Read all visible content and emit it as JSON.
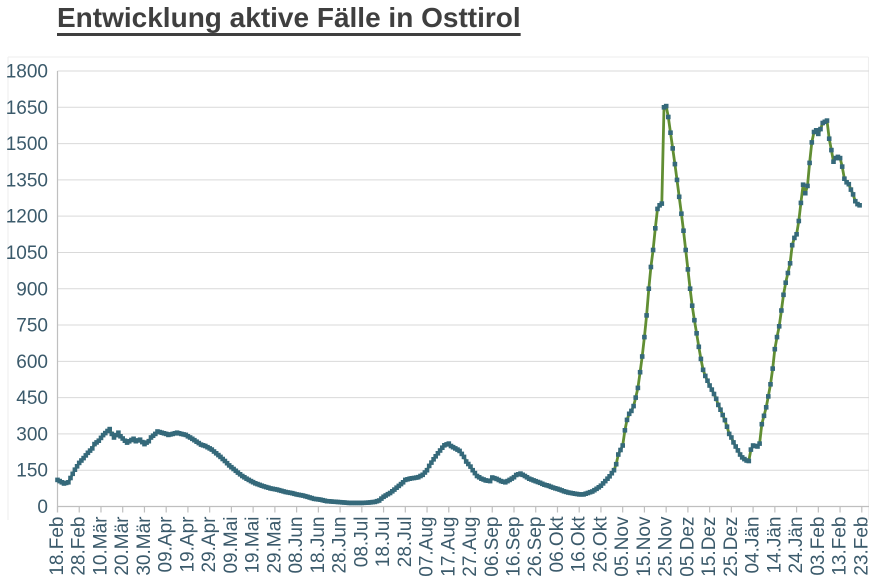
{
  "title": {
    "text": "Entwicklung aktive Fälle in Osttirol",
    "color": "#3f3f3f"
  },
  "colors": {
    "background": "#ffffff",
    "line": "#618e33",
    "marker": "#35697a",
    "gridline": "#d9d9d9",
    "axis_line": "#bfbfbf",
    "tick_label": "#3b5a6b",
    "chart_border": "#ededed"
  },
  "chart_data": {
    "type": "line",
    "title": "Entwicklung aktive Fälle in Osttirol",
    "xlabel": "",
    "ylabel": "",
    "ylim": [
      0,
      1800
    ],
    "ytick_step": 150,
    "ytick_labels": [
      "0",
      "150",
      "300",
      "450",
      "600",
      "750",
      "900",
      "1050",
      "1200",
      "1350",
      "1500",
      "1650",
      "1800"
    ],
    "x_tick_labels": [
      "18.Feb",
      "28.Feb",
      "10.Mär",
      "20.Mär",
      "30.Mär",
      "09.Apr",
      "19.Apr",
      "29.Apr",
      "09.Mai",
      "19.Mai",
      "29.Mai",
      "08.Jun",
      "18.Jun",
      "28.Jun",
      "08.Jul",
      "18.Jul",
      "28.Jul",
      "07.Aug",
      "17.Aug",
      "27.Aug",
      "06.Sep",
      "16.Sep",
      "26.Sep",
      "06.Okt",
      "16.Okt",
      "26.Okt",
      "05.Nov",
      "15.Nov",
      "25.Nov",
      "05.Dez",
      "15.Dez",
      "25.Dez",
      "04.Jän",
      "14.Jän",
      "24.Jän",
      "03.Feb",
      "13.Feb",
      "23.Feb"
    ],
    "x_days_per_tick": 10,
    "grid": true,
    "legend": "none",
    "marker_shape": "square",
    "series": [
      {
        "points": [
          [
            0,
            110
          ],
          [
            2,
            100
          ],
          [
            3,
            95
          ],
          [
            5,
            100
          ],
          [
            6,
            118
          ],
          [
            8,
            152
          ],
          [
            10,
            180
          ],
          [
            12,
            200
          ],
          [
            14,
            222
          ],
          [
            16,
            240
          ],
          [
            17,
            258
          ],
          [
            19,
            272
          ],
          [
            21,
            295
          ],
          [
            23,
            312
          ],
          [
            24,
            320
          ],
          [
            25,
            300
          ],
          [
            26,
            285
          ],
          [
            27,
            295
          ],
          [
            28,
            305
          ],
          [
            29,
            290
          ],
          [
            31,
            272
          ],
          [
            32,
            264
          ],
          [
            34,
            275
          ],
          [
            35,
            280
          ],
          [
            36,
            270
          ],
          [
            38,
            276
          ],
          [
            39,
            266
          ],
          [
            40,
            258
          ],
          [
            42,
            270
          ],
          [
            43,
            285
          ],
          [
            45,
            300
          ],
          [
            46,
            310
          ],
          [
            48,
            305
          ],
          [
            50,
            300
          ],
          [
            51,
            296
          ],
          [
            53,
            300
          ],
          [
            55,
            305
          ],
          [
            57,
            300
          ],
          [
            59,
            296
          ],
          [
            60,
            290
          ],
          [
            62,
            280
          ],
          [
            64,
            268
          ],
          [
            66,
            256
          ],
          [
            68,
            250
          ],
          [
            71,
            235
          ],
          [
            73,
            220
          ],
          [
            75,
            205
          ],
          [
            77,
            188
          ],
          [
            79,
            170
          ],
          [
            81,
            155
          ],
          [
            83,
            140
          ],
          [
            85,
            126
          ],
          [
            87,
            115
          ],
          [
            89,
            105
          ],
          [
            91,
            96
          ],
          [
            94,
            86
          ],
          [
            96,
            80
          ],
          [
            98,
            75
          ],
          [
            101,
            70
          ],
          [
            103,
            65
          ],
          [
            105,
            60
          ],
          [
            108,
            55
          ],
          [
            110,
            50
          ],
          [
            113,
            45
          ],
          [
            115,
            40
          ],
          [
            118,
            32
          ],
          [
            121,
            28
          ],
          [
            124,
            22
          ],
          [
            127,
            20
          ],
          [
            131,
            17
          ],
          [
            134,
            15
          ],
          [
            140,
            15
          ],
          [
            143,
            16
          ],
          [
            146,
            19
          ],
          [
            148,
            25
          ],
          [
            150,
            40
          ],
          [
            153,
            56
          ],
          [
            155,
            70
          ],
          [
            157,
            85
          ],
          [
            159,
            100
          ],
          [
            160,
            110
          ],
          [
            162,
            115
          ],
          [
            164,
            118
          ],
          [
            166,
            121
          ],
          [
            168,
            131
          ],
          [
            170,
            150
          ],
          [
            171,
            168
          ],
          [
            173,
            195
          ],
          [
            175,
            220
          ],
          [
            177,
            243
          ],
          [
            178,
            253
          ],
          [
            180,
            260
          ],
          [
            181,
            250
          ],
          [
            183,
            240
          ],
          [
            185,
            230
          ],
          [
            187,
            205
          ],
          [
            188,
            186
          ],
          [
            190,
            165
          ],
          [
            191,
            150
          ],
          [
            193,
            126
          ],
          [
            195,
            115
          ],
          [
            197,
            108
          ],
          [
            199,
            105
          ],
          [
            200,
            120
          ],
          [
            202,
            114
          ],
          [
            204,
            105
          ],
          [
            206,
            100
          ],
          [
            208,
            110
          ],
          [
            210,
            121
          ],
          [
            211,
            130
          ],
          [
            213,
            136
          ],
          [
            215,
            126
          ],
          [
            217,
            115
          ],
          [
            219,
            108
          ],
          [
            222,
            98
          ],
          [
            224,
            90
          ],
          [
            226,
            85
          ],
          [
            228,
            78
          ],
          [
            231,
            70
          ],
          [
            233,
            63
          ],
          [
            235,
            58
          ],
          [
            238,
            53
          ],
          [
            240,
            50
          ],
          [
            242,
            50
          ],
          [
            244,
            56
          ],
          [
            246,
            62
          ],
          [
            248,
            73
          ],
          [
            250,
            86
          ],
          [
            252,
            105
          ],
          [
            254,
            125
          ],
          [
            256,
            150
          ],
          [
            257,
            175
          ],
          [
            258,
            215
          ],
          [
            260,
            252
          ],
          [
            261,
            315
          ],
          [
            262,
            358
          ],
          [
            263,
            383
          ],
          [
            264,
            395
          ],
          [
            265,
            415
          ],
          [
            266,
            450
          ],
          [
            267,
            490
          ],
          [
            268,
            555
          ],
          [
            269,
            620
          ],
          [
            270,
            700
          ],
          [
            271,
            790
          ],
          [
            272,
            900
          ],
          [
            273,
            990
          ],
          [
            274,
            1060
          ],
          [
            275,
            1150
          ],
          [
            276,
            1230
          ],
          [
            277,
            1245
          ],
          [
            278,
            1252
          ],
          [
            279,
            1650
          ],
          [
            280,
            1655
          ],
          [
            281,
            1610
          ],
          [
            282,
            1545
          ],
          [
            283,
            1480
          ],
          [
            284,
            1415
          ],
          [
            285,
            1350
          ],
          [
            286,
            1280
          ],
          [
            287,
            1210
          ],
          [
            288,
            1140
          ],
          [
            289,
            1060
          ],
          [
            290,
            980
          ],
          [
            291,
            900
          ],
          [
            292,
            830
          ],
          [
            293,
            770
          ],
          [
            294,
            716
          ],
          [
            295,
            660
          ],
          [
            296,
            610
          ],
          [
            297,
            565
          ],
          [
            298,
            540
          ],
          [
            299,
            520
          ],
          [
            300,
            500
          ],
          [
            301,
            483
          ],
          [
            302,
            465
          ],
          [
            303,
            445
          ],
          [
            304,
            420
          ],
          [
            305,
            400
          ],
          [
            306,
            378
          ],
          [
            307,
            357
          ],
          [
            308,
            330
          ],
          [
            309,
            300
          ],
          [
            310,
            285
          ],
          [
            311,
            265
          ],
          [
            312,
            248
          ],
          [
            313,
            232
          ],
          [
            314,
            215
          ],
          [
            315,
            203
          ],
          [
            316,
            196
          ],
          [
            317,
            190
          ],
          [
            318,
            188
          ],
          [
            319,
            235
          ],
          [
            320,
            252
          ],
          [
            321,
            250
          ],
          [
            322,
            248
          ],
          [
            323,
            260
          ],
          [
            324,
            340
          ],
          [
            326,
            410
          ],
          [
            327,
            455
          ],
          [
            328,
            505
          ],
          [
            329,
            570
          ],
          [
            330,
            650
          ],
          [
            331,
            700
          ],
          [
            332,
            745
          ],
          [
            333,
            810
          ],
          [
            334,
            875
          ],
          [
            335,
            925
          ],
          [
            336,
            965
          ],
          [
            337,
            1005
          ],
          [
            338,
            1080
          ],
          [
            339,
            1110
          ],
          [
            340,
            1125
          ],
          [
            341,
            1180
          ],
          [
            342,
            1255
          ],
          [
            343,
            1330
          ],
          [
            344,
            1295
          ],
          [
            345,
            1325
          ],
          [
            346,
            1420
          ],
          [
            347,
            1505
          ],
          [
            348,
            1548
          ],
          [
            349,
            1555
          ],
          [
            350,
            1540
          ],
          [
            351,
            1560
          ],
          [
            352,
            1585
          ],
          [
            353,
            1590
          ],
          [
            354,
            1595
          ],
          [
            355,
            1520
          ],
          [
            356,
            1473
          ],
          [
            357,
            1425
          ],
          [
            358,
            1440
          ],
          [
            359,
            1445
          ],
          [
            360,
            1440
          ],
          [
            361,
            1405
          ],
          [
            362,
            1355
          ],
          [
            363,
            1340
          ],
          [
            364,
            1332
          ],
          [
            365,
            1310
          ],
          [
            366,
            1290
          ],
          [
            367,
            1262
          ],
          [
            368,
            1250
          ],
          [
            369,
            1245
          ]
        ]
      }
    ]
  }
}
